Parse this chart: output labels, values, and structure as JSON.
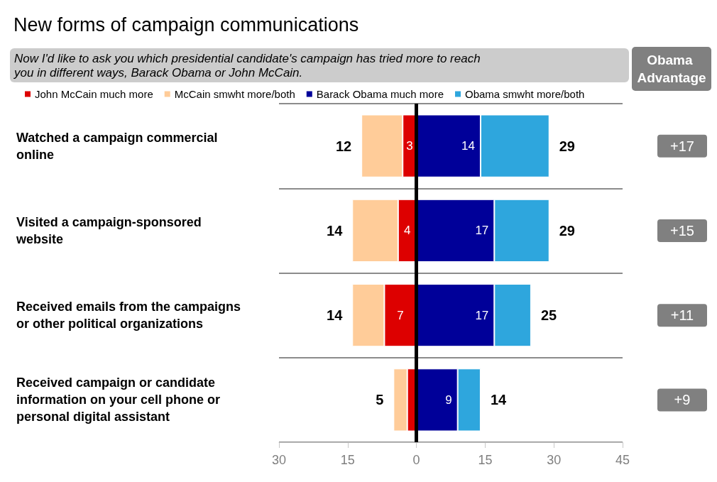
{
  "chart_data": {
    "type": "bar",
    "orientation": "horizontal",
    "title": "New forms of campaign communications",
    "subtitle": "Now I'd like to ask you which presidential candidate's campaign has tried more to reach you in different ways, Barack Obama or John McCain.",
    "categories": [
      "Watched a campaign commercial online",
      "Visited a campaign-sponsored website",
      "Received emails from the campaigns or other political organizations",
      "Received campaign or candidate information on your cell phone or personal digital assistant"
    ],
    "series": [
      {
        "name": "John McCain much more",
        "color": "#dd0000",
        "base": [
          -3,
          -4,
          -7,
          -2
        ],
        "values": [
          3,
          4,
          7,
          2
        ],
        "value_labels": [
          "3",
          "4",
          "7",
          null
        ]
      },
      {
        "name": "McCain smwht more/both",
        "color": "#ffcc99",
        "base": [
          -12,
          -14,
          -14,
          -5
        ],
        "values": [
          9,
          10,
          7,
          3
        ]
      },
      {
        "name": "Barack Obama much more",
        "color": "#000099",
        "base": [
          0,
          0,
          0,
          0
        ],
        "values": [
          14,
          17,
          17,
          9
        ],
        "data_labels": true
      },
      {
        "name": "Obama smwht more/both",
        "color": "#2ea6dd",
        "base": [
          14,
          17,
          17,
          9
        ],
        "values": [
          15,
          12,
          8,
          5
        ]
      }
    ],
    "xlim": [
      -30,
      45
    ],
    "xticks": [
      {
        "value": -30,
        "label": "30"
      },
      {
        "value": -15,
        "label": "15"
      },
      0,
      15,
      30,
      45
    ],
    "ref_lines": [
      {
        "axis": "x",
        "value": 0,
        "color": "#000000"
      }
    ],
    "grid": "y",
    "legend": "top left",
    "annotations": [
      "Obama Advantage",
      "+17",
      "+15",
      "+11",
      "+9",
      {
        "text": "12",
        "x": -12,
        "y": "Watched a campaign commercial online"
      },
      {
        "text": "29",
        "x": 29,
        "y": "Watched a campaign commercial online"
      },
      {
        "text": "14",
        "x": -14,
        "y": "Visited a campaign-sponsored website"
      },
      {
        "text": "29",
        "x": 29,
        "y": "Visited a campaign-sponsored website"
      },
      {
        "text": "14",
        "x": -14,
        "y": "Received emails from the campaigns or other political organizations"
      },
      {
        "text": "25",
        "x": 25,
        "y": "Received emails from the campaigns or other political organizations"
      },
      {
        "text": "5",
        "x": -5,
        "y": "Received campaign or candidate information on your cell phone or personal digital assistant"
      },
      {
        "text": "14",
        "x": 14,
        "y": "Received campaign or candidate information on your cell phone or personal digital assistant"
      }
    ]
  }
}
